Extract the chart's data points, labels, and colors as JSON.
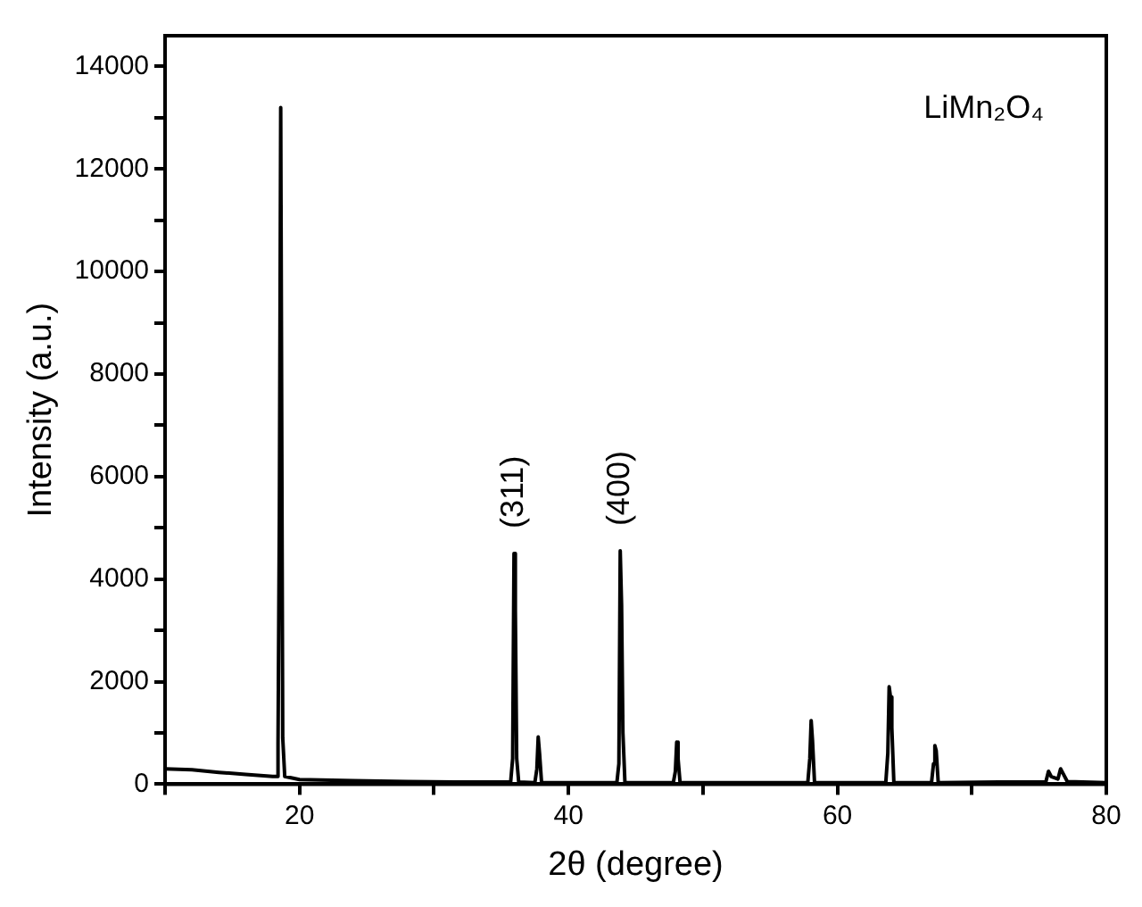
{
  "chart_data": {
    "type": "line",
    "xlabel": "2θ (degree)",
    "ylabel": "Intensity (a.u.)",
    "x": [
      10,
      12,
      14,
      16,
      18,
      18.3,
      18.4,
      18.5,
      18.6,
      18.75,
      18.9,
      20,
      24,
      28,
      32,
      35.7,
      35.85,
      35.95,
      36.05,
      36.15,
      36.3,
      37.5,
      37.65,
      37.75,
      37.85,
      38.0,
      40,
      43.6,
      43.75,
      43.85,
      43.95,
      44.05,
      44.2,
      47.8,
      47.95,
      48.05,
      48.15,
      48.3,
      57.8,
      57.95,
      58.05,
      58.15,
      58.3,
      63.6,
      63.75,
      63.85,
      63.95,
      64.05,
      64.2,
      67.0,
      67.15,
      67.25,
      67.35,
      67.5,
      72,
      75.5,
      75.7,
      75.9,
      76.4,
      76.6,
      76.8,
      77.1,
      80
    ],
    "series": [
      {
        "color": "#000000",
        "values": [
          300,
          280,
          230,
          190,
          150,
          150,
          800,
          5200,
          13200,
          900,
          150,
          90,
          70,
          50,
          40,
          40,
          500,
          4500,
          3400,
          500,
          40,
          30,
          300,
          920,
          600,
          30,
          30,
          30,
          400,
          4550,
          3500,
          1000,
          30,
          30,
          250,
          820,
          500,
          30,
          30,
          500,
          1240,
          850,
          30,
          30,
          600,
          1900,
          1700,
          1100,
          30,
          30,
          400,
          750,
          650,
          30,
          40,
          40,
          250,
          150,
          100,
          300,
          200,
          50,
          30
        ]
      }
    ],
    "xlim": [
      10,
      80
    ],
    "xticks": [
      {
        "value": 10,
        "label": null
      },
      20,
      {
        "value": 30,
        "label": null
      },
      40,
      {
        "value": 50,
        "label": null
      },
      60,
      {
        "value": 70,
        "label": null
      },
      80
    ],
    "ylim": [
      0,
      14600
    ],
    "yticks": [
      0,
      {
        "value": 1000,
        "label": null
      },
      2000,
      {
        "value": 3000,
        "label": null
      },
      4000,
      {
        "value": 5000,
        "label": null
      },
      6000,
      {
        "value": 7000,
        "label": null
      },
      8000,
      {
        "value": 9000,
        "label": null
      },
      10000,
      {
        "value": 11000,
        "label": null
      },
      12000,
      {
        "value": 13000,
        "label": null
      },
      14000
    ],
    "grid": false,
    "legend": false,
    "marker": "none",
    "line_style": "solid",
    "annotations": [
      {
        "text": "(311)",
        "x": 35.95,
        "y": 4500
      },
      {
        "text": "(400)",
        "x": 43.85,
        "y": 4550
      },
      "LiMn₂O₄"
    ]
  }
}
